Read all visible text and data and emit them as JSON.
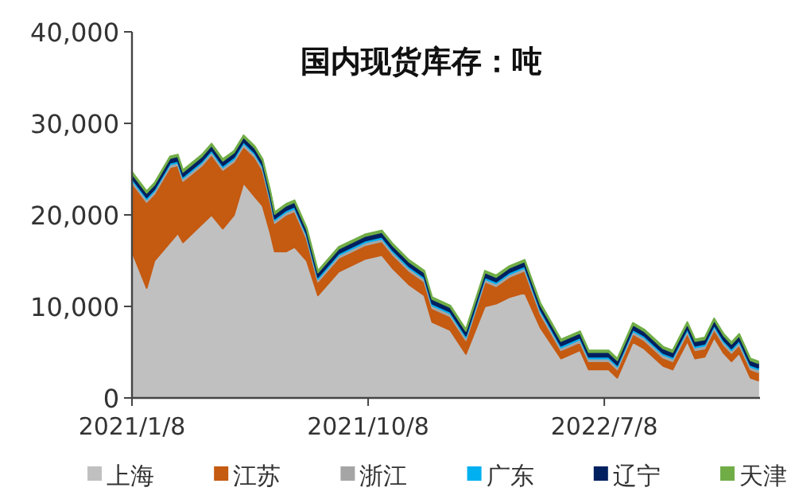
{
  "chart_data": {
    "type": "area",
    "title": "国内现货库存：吨",
    "stacked": true,
    "legend": "bottom",
    "grid": false,
    "x": [
      "2021-01-08",
      "2021-01-25",
      "2021-02-03",
      "2021-02-21",
      "2021-03-02",
      "2021-03-08",
      "2021-03-30",
      "2021-04-10",
      "2021-04-23",
      "2021-05-06",
      "2021-05-17",
      "2021-05-30",
      "2021-06-08",
      "2021-06-17",
      "2021-06-22",
      "2021-07-05",
      "2021-07-15",
      "2021-07-29",
      "2021-08-11",
      "2021-09-04",
      "2021-10-05",
      "2021-10-24",
      "2021-11-05",
      "2021-11-24",
      "2021-12-12",
      "2021-12-21",
      "2022-01-11",
      "2022-01-29",
      "2022-02-20",
      "2022-03-05",
      "2022-03-20",
      "2022-04-07",
      "2022-04-25",
      "2022-05-19",
      "2022-06-10",
      "2022-06-20",
      "2022-07-13",
      "2022-07-23",
      "2022-08-10",
      "2022-08-23",
      "2022-09-14",
      "2022-09-25",
      "2022-10-12",
      "2022-10-21",
      "2022-11-01",
      "2022-11-12",
      "2022-11-23",
      "2022-12-02",
      "2022-12-11",
      "2022-12-24",
      "2023-01-02"
    ],
    "xlim": [
      "2021-01-08",
      "2023-01-04"
    ],
    "xticks": [
      {
        "value": "2021-01-08",
        "label": "2021/1/8"
      },
      {
        "value": "2021-10-08",
        "label": "2021/10/8"
      },
      {
        "value": "2022-07-08",
        "label": "2022/7/8"
      }
    ],
    "ylim": [
      0,
      40000
    ],
    "yticks": [
      {
        "value": 0,
        "label": "0"
      },
      {
        "value": 10000,
        "label": "10,000"
      },
      {
        "value": 20000,
        "label": "20,000"
      },
      {
        "value": 30000,
        "label": "30,000"
      },
      {
        "value": 40000,
        "label": "40,000"
      }
    ],
    "series": [
      {
        "name": "上海",
        "color": "#c0c0c0",
        "values": [
          16000,
          12000,
          15000,
          17000,
          18000,
          17000,
          19000,
          20000,
          18500,
          20000,
          23500,
          22000,
          21000,
          18000,
          16000,
          16000,
          16500,
          15000,
          11200,
          13800,
          15200,
          15600,
          14200,
          12400,
          11200,
          8300,
          7400,
          4800,
          10000,
          10300,
          11000,
          11500,
          7700,
          4300,
          5200,
          3100,
          3100,
          2200,
          6100,
          5400,
          3500,
          3100,
          6200,
          4300,
          4500,
          6600,
          4900,
          4000,
          4900,
          2200,
          1900
        ]
      },
      {
        "name": "江苏",
        "color": "#c55a11",
        "values": [
          7500,
          9400,
          7300,
          8200,
          7400,
          6700,
          6400,
          6600,
          6400,
          5800,
          4000,
          4300,
          3900,
          3400,
          3100,
          4000,
          3900,
          2400,
          1500,
          1500,
          1500,
          1500,
          1500,
          1500,
          1500,
          1500,
          1500,
          1500,
          2700,
          1900,
          2200,
          2400,
          1500,
          900,
          900,
          900,
          900,
          900,
          900,
          900,
          900,
          900,
          900,
          900,
          900,
          900,
          900,
          900,
          900,
          900,
          900
        ]
      },
      {
        "name": "浙江",
        "color": "#a5a5a5",
        "values": [
          300,
          300,
          300,
          300,
          300,
          300,
          300,
          300,
          300,
          300,
          300,
          300,
          300,
          300,
          300,
          300,
          300,
          300,
          300,
          300,
          300,
          300,
          300,
          300,
          300,
          300,
          300,
          300,
          300,
          300,
          300,
          300,
          300,
          300,
          300,
          300,
          300,
          300,
          300,
          300,
          300,
          300,
          300,
          300,
          300,
          300,
          300,
          300,
          300,
          300,
          300
        ]
      },
      {
        "name": "广东",
        "color": "#00b0f0",
        "values": [
          200,
          200,
          200,
          200,
          200,
          200,
          200,
          200,
          200,
          200,
          200,
          200,
          200,
          200,
          200,
          200,
          200,
          200,
          200,
          200,
          200,
          200,
          200,
          200,
          200,
          200,
          200,
          200,
          200,
          200,
          200,
          200,
          200,
          200,
          200,
          200,
          200,
          200,
          200,
          200,
          200,
          200,
          200,
          200,
          200,
          200,
          200,
          200,
          200,
          200,
          200
        ]
      },
      {
        "name": "辽宁",
        "color": "#002060",
        "values": [
          500,
          500,
          500,
          500,
          500,
          500,
          500,
          500,
          500,
          500,
          500,
          500,
          500,
          500,
          500,
          500,
          500,
          500,
          500,
          500,
          500,
          500,
          500,
          500,
          500,
          500,
          500,
          500,
          500,
          500,
          500,
          500,
          500,
          500,
          500,
          500,
          500,
          500,
          500,
          500,
          500,
          500,
          500,
          500,
          500,
          500,
          500,
          500,
          500,
          500,
          500
        ]
      },
      {
        "name": "天津",
        "color": "#70ad47",
        "values": [
          200,
          200,
          200,
          200,
          200,
          200,
          200,
          200,
          200,
          200,
          200,
          200,
          200,
          200,
          200,
          200,
          200,
          200,
          200,
          200,
          200,
          200,
          200,
          200,
          200,
          200,
          200,
          200,
          200,
          200,
          200,
          200,
          200,
          200,
          200,
          200,
          200,
          200,
          200,
          200,
          200,
          200,
          200,
          200,
          200,
          200,
          200,
          200,
          200,
          200,
          200
        ]
      }
    ]
  }
}
